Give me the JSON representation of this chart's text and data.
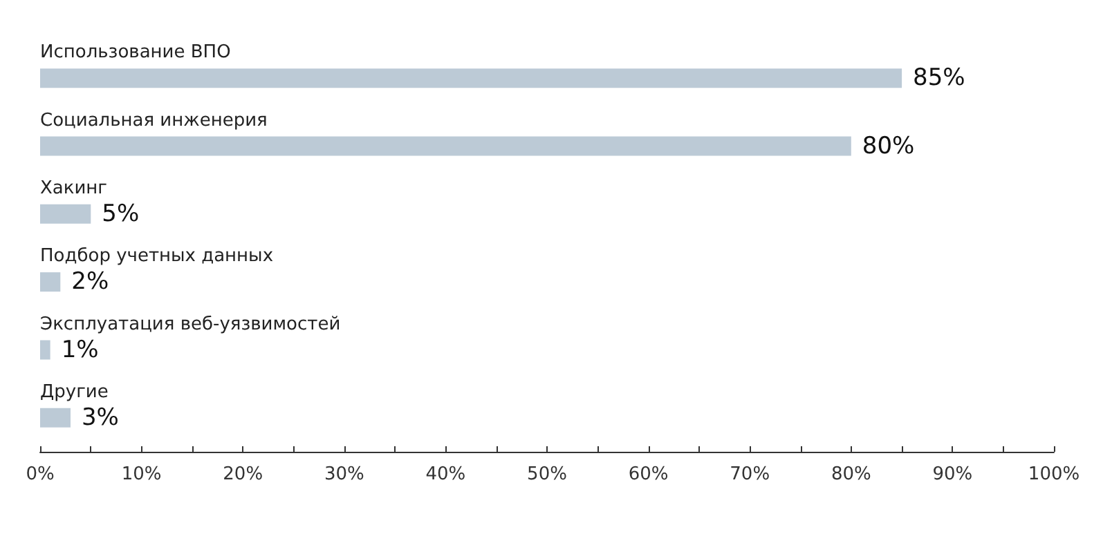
{
  "chart_data": {
    "type": "bar",
    "orientation": "horizontal",
    "categories": [
      "Использование ВПО",
      "Социальная инженерия",
      "Хакинг",
      "Подбор учетных данных",
      "Эксплуатация веб-уязвимостей",
      "Другие"
    ],
    "values": [
      85,
      80,
      5,
      2,
      1,
      3
    ],
    "value_labels": [
      "85%",
      "80%",
      "5%",
      "2%",
      "1%",
      "3%"
    ],
    "color": "#bccad6",
    "xlim": [
      0,
      100
    ],
    "xticks": [
      {
        "value": 0,
        "label": "0%"
      },
      {
        "value": 5,
        "label": null
      },
      {
        "value": 10,
        "label": "10%"
      },
      {
        "value": 15,
        "label": null
      },
      {
        "value": 20,
        "label": "20%"
      },
      {
        "value": 25,
        "label": null
      },
      {
        "value": 30,
        "label": "30%"
      },
      {
        "value": 35,
        "label": null
      },
      {
        "value": 40,
        "label": "40%"
      },
      {
        "value": 45,
        "label": null
      },
      {
        "value": 50,
        "label": "50%"
      },
      {
        "value": 55,
        "label": null
      },
      {
        "value": 60,
        "label": "60%"
      },
      {
        "value": 65,
        "label": null
      },
      {
        "value": 70,
        "label": "70%"
      },
      {
        "value": 75,
        "label": null
      },
      {
        "value": 80,
        "label": "80%"
      },
      {
        "value": 85,
        "label": null
      },
      {
        "value": 90,
        "label": "90%"
      },
      {
        "value": 95,
        "label": null
      },
      {
        "value": 100,
        "label": "100%"
      }
    ],
    "grid": false
  }
}
